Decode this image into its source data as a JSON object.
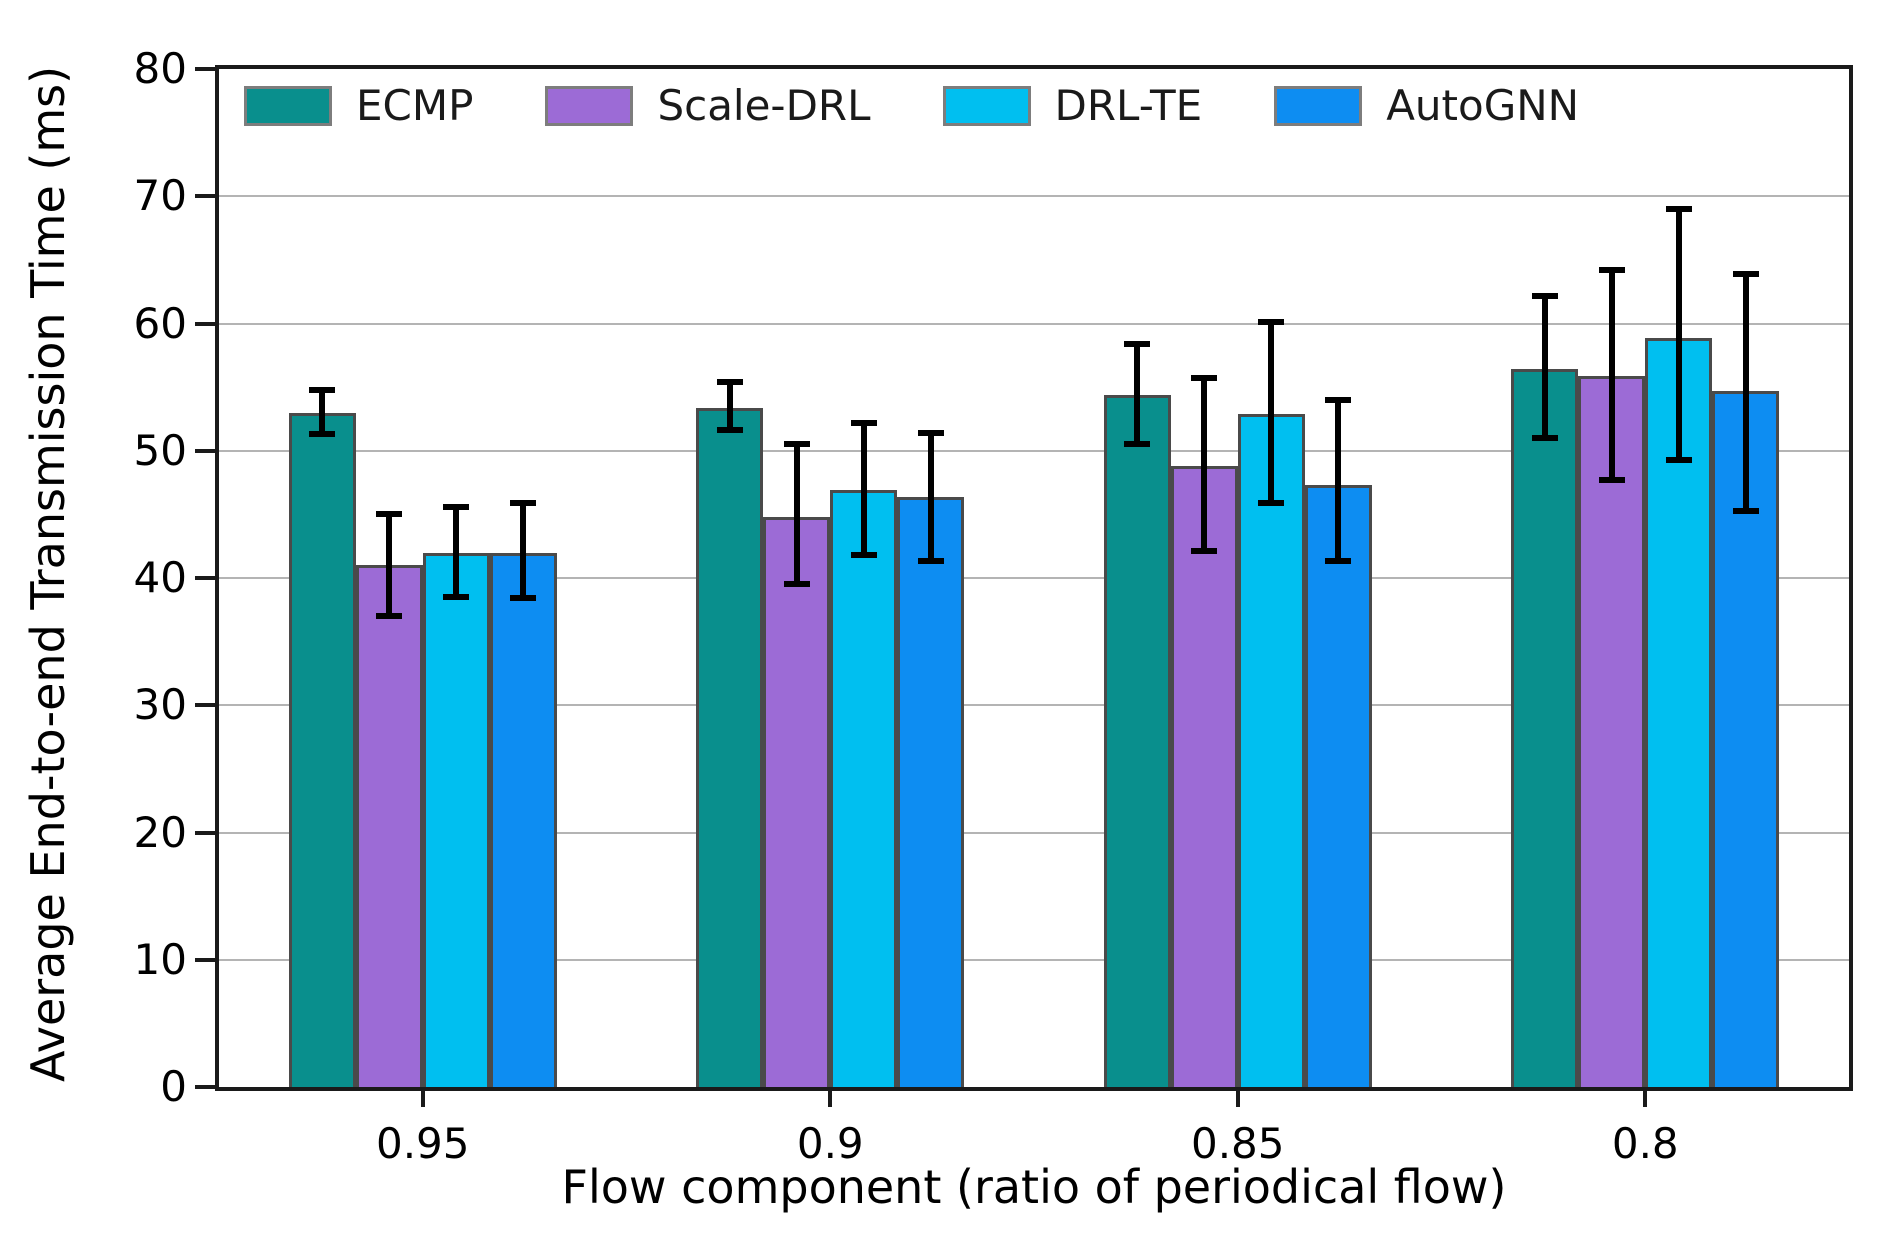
{
  "chart_data": {
    "type": "bar",
    "title": "",
    "xlabel": "Flow component (ratio of periodical flow)",
    "ylabel": "Average End-to-end Transmission Time (ms)",
    "categories": [
      "0.95",
      "0.9",
      "0.85",
      "0.8"
    ],
    "ylim": [
      0,
      80
    ],
    "yticks": [
      0,
      10,
      20,
      30,
      40,
      50,
      60,
      70,
      80
    ],
    "grid": true,
    "gridline_color": "#b4b4b4",
    "error_bar_color": "#000000",
    "bar_edge_color": "#4a4a4a",
    "legend_position": "upper-left-inside",
    "series": [
      {
        "name": "ECMP",
        "color": "#098f8d",
        "values": [
          53.0,
          53.4,
          54.4,
          56.4
        ],
        "err_lo": [
          51.3,
          51.6,
          50.5,
          51.0
        ],
        "err_hi": [
          54.8,
          55.4,
          58.4,
          62.2
        ]
      },
      {
        "name": "Scale-DRL",
        "color": "#9c6bd6",
        "values": [
          41.0,
          44.8,
          48.8,
          55.9
        ],
        "err_lo": [
          37.0,
          39.5,
          42.1,
          47.7
        ],
        "err_hi": [
          45.0,
          50.5,
          55.7,
          64.2
        ]
      },
      {
        "name": "DRL-TE",
        "color": "#00bff0",
        "values": [
          42.0,
          46.9,
          52.9,
          58.9
        ],
        "err_lo": [
          38.5,
          41.8,
          45.9,
          49.3
        ],
        "err_hi": [
          45.6,
          52.2,
          60.1,
          69.0
        ]
      },
      {
        "name": "AutoGNN",
        "color": "#0d8df2",
        "values": [
          42.0,
          46.4,
          47.3,
          54.7
        ],
        "err_lo": [
          38.4,
          41.3,
          41.3,
          45.3
        ],
        "err_hi": [
          45.9,
          51.4,
          54.0,
          63.9
        ]
      }
    ]
  }
}
